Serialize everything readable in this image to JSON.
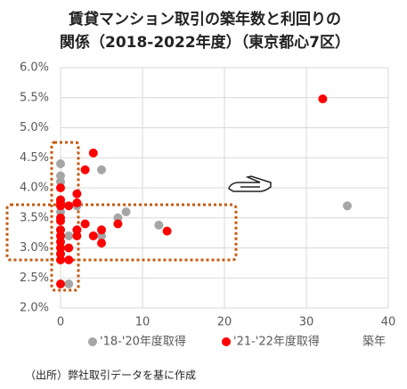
{
  "chart_data": {
    "type": "scatter",
    "title": [
      "賃貸マンション取引の築年数と利回りの",
      "関係（2018-2022年度）（東京都心7区）"
    ],
    "x_label": "築年",
    "source": "（出所）弊社取引データを基に作成",
    "xlim": [
      0,
      40
    ],
    "xticks": [
      0,
      10,
      20,
      30,
      40
    ],
    "ylim": [
      2.0,
      6.0
    ],
    "yticks": [
      {
        "value": 2.0,
        "label": "2.0%"
      },
      {
        "value": 2.5,
        "label": "2.5%"
      },
      {
        "value": 3.0,
        "label": "3.0%"
      },
      {
        "value": 3.5,
        "label": "3.5%"
      },
      {
        "value": 4.0,
        "label": "4.0%"
      },
      {
        "value": 4.5,
        "label": "4.5%"
      },
      {
        "value": 5.0,
        "label": "5.0%"
      },
      {
        "value": 5.5,
        "label": "5.5%"
      },
      {
        "value": 6.0,
        "label": "6.0%"
      }
    ],
    "grid": true,
    "series": [
      {
        "name": "'18-'20年度取得",
        "color": "#a6a6a6",
        "x": [
          0,
          0,
          0,
          0,
          0,
          0,
          0,
          0,
          0,
          1,
          1,
          2,
          2,
          5,
          5,
          7,
          8,
          12,
          35
        ],
        "values": [
          4.4,
          4.2,
          4.1,
          3.8,
          3.6,
          3.3,
          3.2,
          3.0,
          2.9,
          2.4,
          3.2,
          3.7,
          3.3,
          4.3,
          3.2,
          3.5,
          3.6,
          3.38,
          3.7
        ]
      },
      {
        "name": "'21-'22年度取得",
        "color": "#ff0000",
        "x": [
          0,
          0,
          0,
          0,
          0,
          0,
          0,
          0,
          0,
          0,
          0,
          0,
          0,
          1,
          1,
          1,
          2,
          2,
          2,
          2,
          3,
          3,
          4,
          4,
          5,
          5,
          7,
          13,
          32
        ],
        "values": [
          4.0,
          3.8,
          3.75,
          3.7,
          3.5,
          3.45,
          3.3,
          3.2,
          3.1,
          3.0,
          2.9,
          2.8,
          2.4,
          3.7,
          2.8,
          3.0,
          3.9,
          3.75,
          3.3,
          3.2,
          4.3,
          3.4,
          4.58,
          3.2,
          3.3,
          3.08,
          3.4,
          3.28,
          5.48
        ]
      }
    ]
  }
}
